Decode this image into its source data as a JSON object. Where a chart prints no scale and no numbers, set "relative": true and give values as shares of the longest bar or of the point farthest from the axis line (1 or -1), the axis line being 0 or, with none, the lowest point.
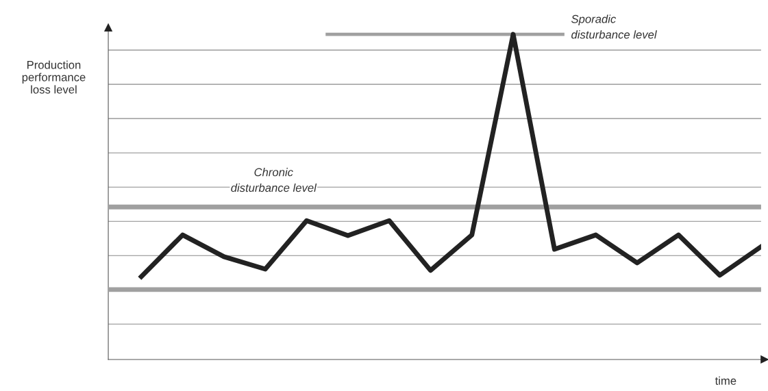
{
  "chart_data": {
    "type": "line",
    "relative": true,
    "ylabel": "Production\nperformance\nloss level",
    "xlabel": "time",
    "categories": [
      null,
      null,
      null,
      null,
      null,
      null,
      null,
      null,
      null,
      null,
      null,
      null,
      null,
      null,
      null,
      null
    ],
    "series": [
      {
        "color": "#222222",
        "values": [
          0.255,
          0.383,
          0.316,
          0.278,
          0.427,
          0.381,
          0.427,
          0.274,
          0.383,
          1.0,
          0.339,
          0.383,
          0.297,
          0.383,
          0.259,
          0.347
        ]
      }
    ],
    "ref_lines": [
      {
        "axis": "y",
        "value": 0.469,
        "label": "Chronic\ndisturbance level",
        "color": "#a0a0a0"
      },
      {
        "axis": "y",
        "value": 0.215,
        "label": null,
        "color": "#a0a0a0"
      },
      {
        "axis": "y",
        "value": 1.0,
        "label": "Sporadic\ndisturbance level",
        "color": "#a0a0a0"
      }
    ],
    "grid": "y",
    "marker": "none",
    "line_style": "solid",
    "legend": false
  }
}
